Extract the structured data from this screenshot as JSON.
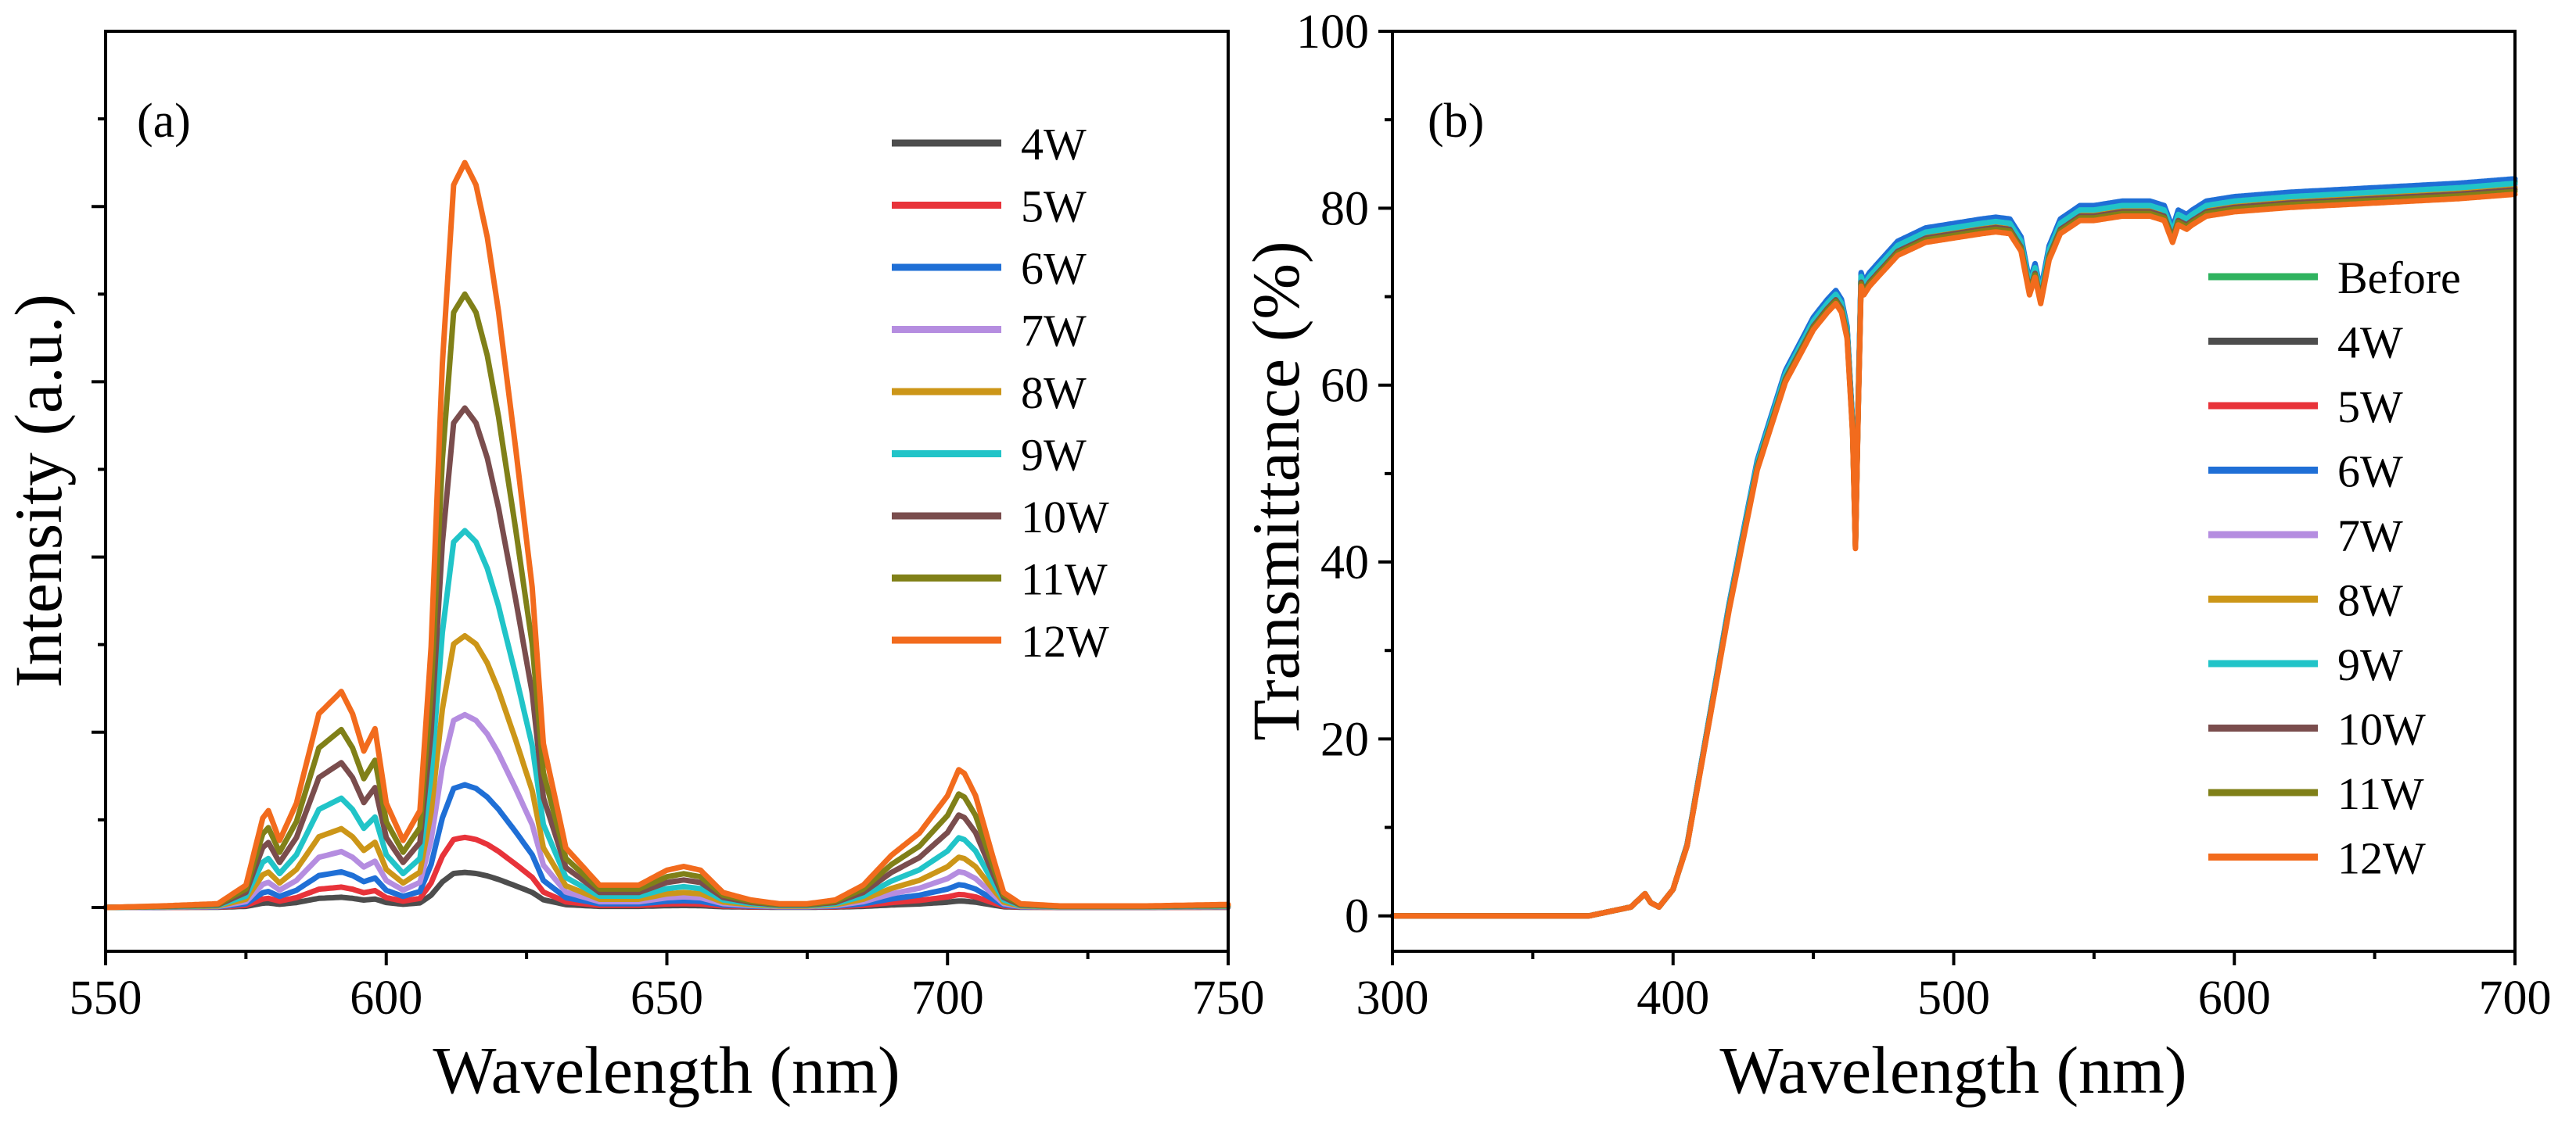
{
  "chart_data": [
    {
      "id": "a",
      "type": "line",
      "panel_label": "(a)",
      "xlabel": "Wavelength (nm)",
      "ylabel": "Intensity (a.u.)",
      "xlim": [
        550,
        750
      ],
      "ylim": [
        -5,
        100
      ],
      "xticks": [
        550,
        600,
        650,
        700,
        750
      ],
      "yticks_major": [
        0,
        20,
        40,
        60,
        80
      ],
      "yticks_minor": [
        10,
        30,
        50,
        70,
        90
      ],
      "show_y_tick_labels": false,
      "legend_position": "top-right",
      "legend": [
        "4W",
        "5W",
        "6W",
        "7W",
        "8W",
        "9W",
        "10W",
        "11W",
        "12W"
      ],
      "peak_profile": {
        "x": [
          550,
          560,
          570,
          575,
          578,
          579,
          581,
          584,
          588,
          592,
          594,
          596,
          598,
          600,
          603,
          606,
          608,
          610,
          612,
          614,
          616,
          618,
          620,
          623,
          626,
          628,
          632,
          638,
          645,
          650,
          653,
          656,
          660,
          665,
          670,
          675,
          680,
          685,
          690,
          695,
          700,
          702,
          703,
          705,
          708,
          710,
          713,
          720,
          735,
          750
        ],
        "shape": [
          0.0,
          0.002,
          0.005,
          0.03,
          0.12,
          0.13,
          0.09,
          0.14,
          0.26,
          0.29,
          0.26,
          0.21,
          0.24,
          0.14,
          0.09,
          0.13,
          0.35,
          0.73,
          0.97,
          1.0,
          0.97,
          0.9,
          0.8,
          0.62,
          0.43,
          0.22,
          0.08,
          0.03,
          0.03,
          0.05,
          0.055,
          0.05,
          0.02,
          0.01,
          0.005,
          0.005,
          0.01,
          0.03,
          0.07,
          0.1,
          0.15,
          0.185,
          0.18,
          0.15,
          0.07,
          0.02,
          0.005,
          0.002,
          0.002,
          0.004
        ]
      },
      "series": [
        {
          "name": "4W",
          "color": "#4d4d4d",
          "peak": 4
        },
        {
          "name": "5W",
          "color": "#e8333a",
          "peak": 8
        },
        {
          "name": "6W",
          "color": "#1f6fd6",
          "peak": 14
        },
        {
          "name": "7W",
          "color": "#b58de0",
          "peak": 22
        },
        {
          "name": "8W",
          "color": "#cc9618",
          "peak": 31
        },
        {
          "name": "9W",
          "color": "#21c4c8",
          "peak": 43
        },
        {
          "name": "10W",
          "color": "#7a4d4d",
          "peak": 57
        },
        {
          "name": "11W",
          "color": "#808018",
          "peak": 70
        },
        {
          "name": "12W",
          "color": "#f26b1d",
          "peak": 85
        }
      ]
    },
    {
      "id": "b",
      "type": "line",
      "panel_label": "(b)",
      "xlabel": "Wavelength (nm)",
      "ylabel": "Transmittance (%)",
      "xlim": [
        300,
        700
      ],
      "ylim": [
        -4,
        100
      ],
      "xticks": [
        300,
        400,
        500,
        600,
        700
      ],
      "yticks_major": [
        0,
        20,
        40,
        60,
        80,
        100
      ],
      "yticks_minor": [
        10,
        30,
        50,
        70,
        90
      ],
      "legend_position": "right",
      "legend": [
        "Before",
        "4W",
        "5W",
        "6W",
        "7W",
        "8W",
        "9W",
        "10W",
        "11W",
        "12W"
      ],
      "base_curve": {
        "x": [
          300,
          370,
          385,
          390,
          392,
          395,
          400,
          405,
          410,
          420,
          430,
          440,
          450,
          455,
          458,
          460,
          462,
          464,
          465,
          466,
          467,
          468,
          470,
          480,
          490,
          500,
          510,
          515,
          520,
          524,
          527,
          529,
          531,
          534,
          538,
          545,
          550,
          560,
          570,
          575,
          578,
          580,
          583,
          585,
          590,
          600,
          620,
          650,
          680,
          700
        ],
        "y": [
          0,
          0,
          1,
          2.5,
          1.5,
          1,
          3,
          8,
          17,
          35,
          51,
          61,
          67,
          69,
          70,
          69,
          66,
          55,
          42,
          58,
          72,
          71,
          72,
          75.5,
          77,
          77.5,
          78,
          78.2,
          78,
          76,
          71,
          73,
          70,
          75,
          78,
          79.5,
          79.5,
          80,
          80,
          79.5,
          77,
          79,
          78.5,
          79,
          80,
          80.5,
          81,
          81.5,
          82,
          82.5
        ]
      },
      "series": [
        {
          "name": "Before",
          "color": "#2fb35f",
          "offset": 0.6
        },
        {
          "name": "4W",
          "color": "#4d4d4d",
          "offset": 0.4
        },
        {
          "name": "5W",
          "color": "#e8333a",
          "offset": 0.2
        },
        {
          "name": "6W",
          "color": "#1f6fd6",
          "offset": 0.8
        },
        {
          "name": "7W",
          "color": "#b58de0",
          "offset": 0.0
        },
        {
          "name": "8W",
          "color": "#cc9618",
          "offset": -0.2
        },
        {
          "name": "9W",
          "color": "#21c4c8",
          "offset": 0.3
        },
        {
          "name": "10W",
          "color": "#7a4d4d",
          "offset": -0.4
        },
        {
          "name": "11W",
          "color": "#808018",
          "offset": -0.6
        },
        {
          "name": "12W",
          "color": "#f26b1d",
          "offset": -0.9
        }
      ]
    }
  ]
}
